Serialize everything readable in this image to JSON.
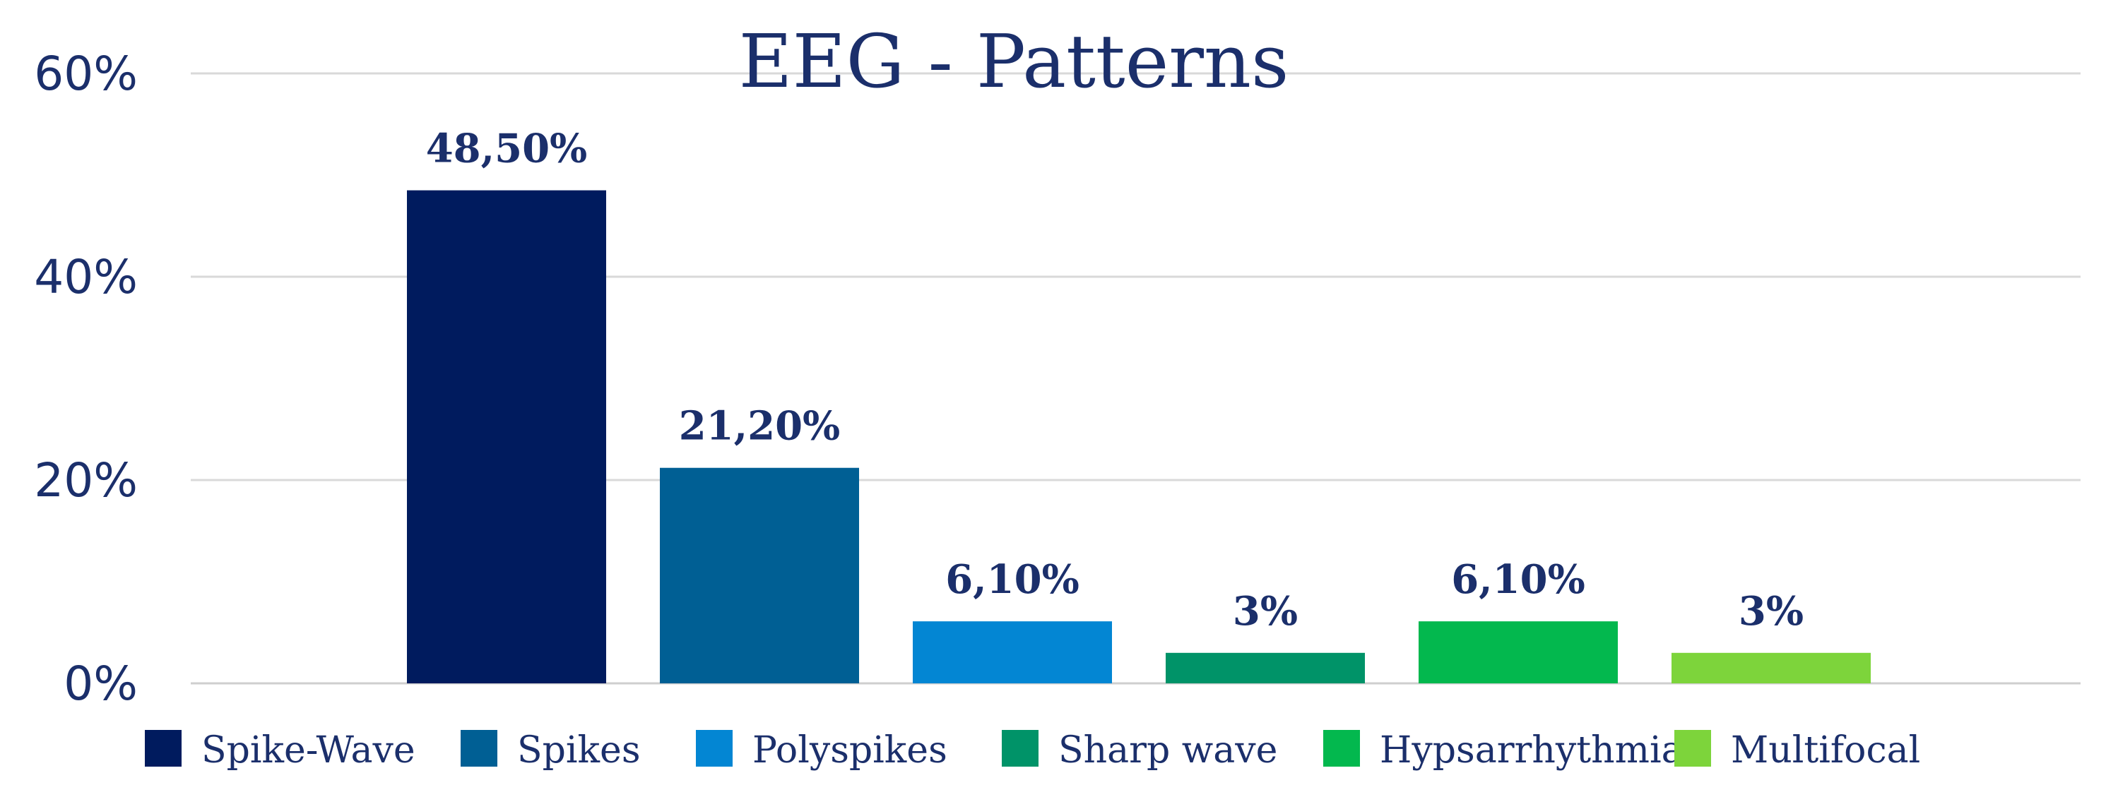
{
  "colors": {
    "text": "#1b2f6b",
    "grid": "#d9d9d9",
    "axis": "#cfcfcf"
  },
  "chart_data": {
    "type": "bar",
    "title": "EEG - Patterns",
    "xlabel": "",
    "ylabel": "",
    "ylim": [
      0,
      60
    ],
    "yticks": [
      0,
      20,
      40,
      60
    ],
    "ytick_labels": [
      "0%",
      "20%",
      "40%",
      "60%"
    ],
    "grid": true,
    "legend_position": "bottom",
    "categories": [
      "Spike-Wave",
      "Spikes",
      "Polyspikes",
      "Sharp wave",
      "Hypsarrhythmia",
      "Multifocal"
    ],
    "values": [
      48.5,
      21.2,
      6.1,
      3,
      6.1,
      3
    ],
    "data_labels": [
      "48,50%",
      "21,20%",
      "6,10%",
      "3%",
      "6,10%",
      "3%"
    ],
    "bar_colors": [
      "#001b5e",
      "#005f94",
      "#0386d3",
      "#009368",
      "#03b84e",
      "#7dd43b"
    ]
  }
}
